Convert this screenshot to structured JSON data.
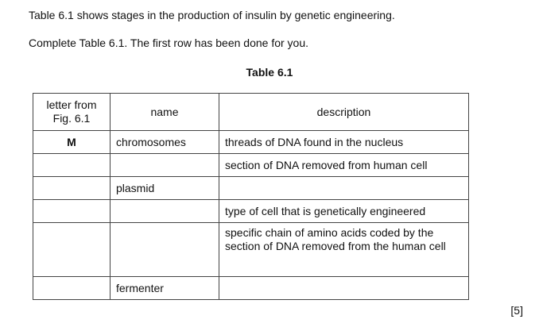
{
  "intro": "Table 6.1 shows stages in the production of insulin by genetic engineering.",
  "instruction": "Complete Table 6.1. The first row has been done for you.",
  "table": {
    "caption": "Table 6.1",
    "headers": {
      "letter": "letter from Fig. 6.1",
      "name": "name",
      "description": "description"
    },
    "rows": [
      {
        "letter": "M",
        "name": "chromosomes",
        "description": "threads of DNA found in the nucleus"
      },
      {
        "letter": "",
        "name": "",
        "description": "section of DNA removed from human cell"
      },
      {
        "letter": "",
        "name": "plasmid",
        "description": ""
      },
      {
        "letter": "",
        "name": "",
        "description": "type of cell that is genetically engineered"
      },
      {
        "letter": "",
        "name": "",
        "description": "specific chain of amino acids coded by the section of DNA removed from the human cell"
      },
      {
        "letter": "",
        "name": "fermenter",
        "description": ""
      }
    ]
  },
  "marks": "[5]"
}
